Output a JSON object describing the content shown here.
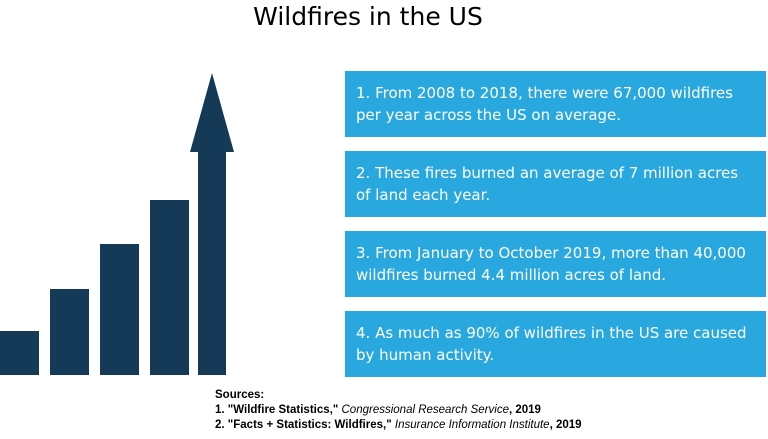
{
  "title": "Wildfires in the US",
  "colors": {
    "bars": "#153a58",
    "fact_box": "#29a8e0",
    "background": "#ffffff"
  },
  "graphic": {
    "icon": "rising-bars-with-up-arrow-icon"
  },
  "facts": [
    "1. From 2008 to 2018, there were 67,000 wildfires per year across the US on average.",
    "2. These fires burned an average of 7 million acres of land each year.",
    "3. From January to October 2019, more than 40,000 wildfires burned 4.4 million acres of land.",
    "4. As much as 90% of wildfires in the US are caused by human activity."
  ],
  "sources": {
    "heading": "Sources:",
    "items": [
      {
        "prefix": "1. ",
        "title": "\"Wildfire Statistics,\"",
        "publisher": "Congressional Research Service",
        "year": ", 2019"
      },
      {
        "prefix": "2. ",
        "title": "\"Facts + Statistics: Wildfires,\"",
        "publisher": "Insurance Information Institute",
        "year": ", 2019"
      }
    ]
  }
}
